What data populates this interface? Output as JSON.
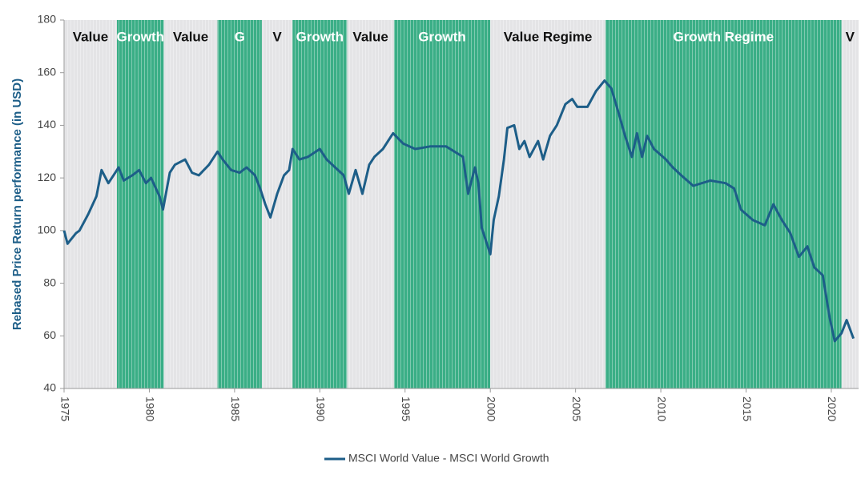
{
  "chart_data": {
    "type": "line",
    "y_label": "Rebased Price Return performance (in USD)",
    "xlim": [
      1975,
      2021.6
    ],
    "xticks": [
      1975,
      1980,
      1985,
      1990,
      1995,
      2000,
      2005,
      2010,
      2015,
      2020
    ],
    "ylim": [
      40,
      180
    ],
    "yticks": [
      40,
      60,
      80,
      100,
      120,
      140,
      160,
      180
    ],
    "grid": false,
    "legend": "bottom",
    "bands": [
      {
        "label": "Value",
        "start": 1975,
        "end": 1978.1,
        "color": "#e4e4e6"
      },
      {
        "label": "Growth",
        "start": 1978.1,
        "end": 1980.85,
        "color": "#3aae86"
      },
      {
        "label": "Value",
        "start": 1980.85,
        "end": 1984.0,
        "color": "#e4e4e6"
      },
      {
        "label": "G",
        "start": 1984.0,
        "end": 1986.6,
        "color": "#3aae86"
      },
      {
        "label": "V",
        "start": 1986.6,
        "end": 1988.4,
        "color": "#e4e4e6"
      },
      {
        "label": "Growth",
        "start": 1988.4,
        "end": 1991.6,
        "color": "#3aae86"
      },
      {
        "label": "Value",
        "start": 1991.6,
        "end": 1994.35,
        "color": "#e4e4e6"
      },
      {
        "label": "Growth",
        "start": 1994.35,
        "end": 2000.0,
        "color": "#3aae86"
      },
      {
        "label": "Value Regime",
        "start": 2000.0,
        "end": 2006.75,
        "color": "#e4e4e6"
      },
      {
        "label": "Growth Regime",
        "start": 2006.75,
        "end": 2020.6,
        "color": "#3aae86"
      },
      {
        "label": "V",
        "start": 2020.6,
        "end": 2021.6,
        "color": "#e4e4e6"
      }
    ],
    "x": [
      1975.0,
      1975.2,
      1975.7,
      1975.9,
      1976.4,
      1976.9,
      1977.2,
      1977.6,
      1978.0,
      1978.2,
      1978.5,
      1979.0,
      1979.4,
      1979.8,
      1980.1,
      1980.6,
      1980.8,
      1981.2,
      1981.5,
      1982.1,
      1982.5,
      1982.9,
      1983.5,
      1984.0,
      1984.3,
      1984.8,
      1985.3,
      1985.7,
      1986.2,
      1986.5,
      1986.8,
      1987.1,
      1987.5,
      1987.9,
      1988.2,
      1988.4,
      1988.8,
      1989.3,
      1990.0,
      1990.4,
      1990.9,
      1991.4,
      1991.7,
      1992.1,
      1992.5,
      1992.9,
      1993.2,
      1993.7,
      1994.3,
      1994.9,
      1995.6,
      1996.5,
      1997.4,
      1997.9,
      1998.4,
      1998.7,
      1999.1,
      1999.3,
      1999.5,
      2000.0,
      2000.2,
      2000.5,
      2000.8,
      2001.0,
      2001.4,
      2001.7,
      2002.0,
      2002.3,
      2002.8,
      2003.1,
      2003.5,
      2003.9,
      2004.4,
      2004.8,
      2005.1,
      2005.7,
      2006.2,
      2006.7,
      2007.1,
      2007.6,
      2007.9,
      2008.3,
      2008.6,
      2008.9,
      2009.2,
      2009.6,
      2010.3,
      2010.7,
      2011.2,
      2011.9,
      2012.9,
      2013.8,
      2014.3,
      2014.7,
      2015.4,
      2016.1,
      2016.6,
      2017.1,
      2017.6,
      2018.1,
      2018.6,
      2019.0,
      2019.5,
      2019.9,
      2020.2,
      2020.6,
      2020.9,
      2021.3
    ],
    "series": [
      {
        "name": "MSCI World Value - MSCI World Growth",
        "color": "#1d5e88",
        "values": [
          100,
          95,
          99,
          100,
          106,
          113,
          123,
          118,
          122,
          124,
          119,
          121,
          123,
          118,
          120,
          113,
          108,
          122,
          125,
          127,
          122,
          121,
          125,
          130,
          127,
          123,
          122,
          124,
          121,
          116,
          110,
          105,
          114,
          121,
          123,
          131,
          127,
          128,
          131,
          127,
          124,
          121,
          114,
          123,
          114,
          125,
          128,
          131,
          137,
          133,
          131,
          132,
          132,
          130,
          128,
          114,
          124,
          118,
          101,
          91,
          104,
          113,
          127,
          139,
          140,
          131,
          134,
          128,
          134,
          127,
          136,
          140,
          148,
          150,
          147,
          147,
          153,
          157,
          154,
          143,
          136,
          128,
          137,
          128,
          136,
          131,
          127,
          124,
          121,
          117,
          119,
          118,
          116,
          108,
          104,
          102,
          110,
          104,
          99,
          90,
          94,
          86,
          83,
          67,
          58,
          61,
          66,
          59
        ]
      }
    ]
  }
}
